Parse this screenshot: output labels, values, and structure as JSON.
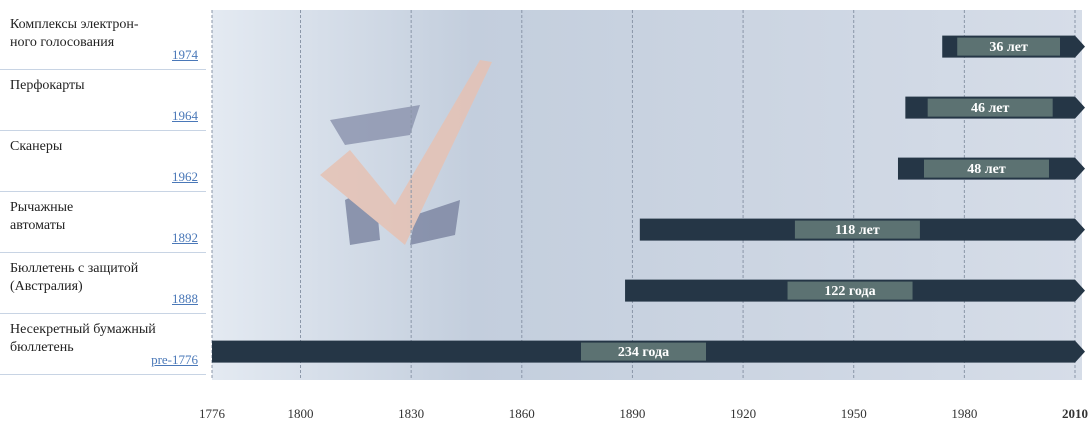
{
  "chart_data": {
    "type": "timeline",
    "categories": [
      "Комплексы электрон-\nного голосования",
      "Перфокарты",
      "Сканеры",
      "Рычажные\nавтоматы",
      "Бюллетень с защитой\n(Австралия)",
      "Несекретный бумажный\nбюллетень"
    ],
    "starts": [
      1974,
      1964,
      1962,
      1892,
      1888,
      {
        "value": 1776,
        "label": "pre-1776"
      }
    ],
    "values": [
      36,
      46,
      48,
      118,
      122,
      234
    ],
    "value_labels": [
      "36 лет",
      "46 лет",
      "48 лет",
      "118 лет",
      "122 года",
      "234 года"
    ],
    "color": "#253646",
    "xlim": [
      1776,
      2010
    ],
    "xticks": [
      1776,
      1800,
      1830,
      1860,
      1890,
      1920,
      1950,
      1980,
      2010
    ],
    "grid": true
  }
}
